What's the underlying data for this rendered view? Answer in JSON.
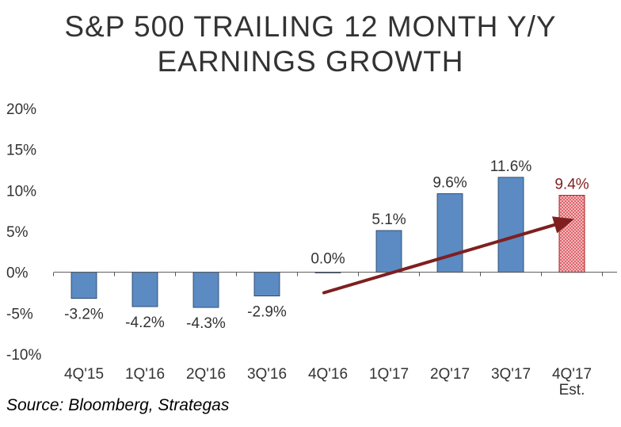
{
  "title": {
    "line1": "S&P 500 TRAILING 12 MONTH Y/Y",
    "line2": "EARNINGS GROWTH"
  },
  "source": "Source:  Bloomberg, Strategas",
  "chart_data": {
    "type": "bar",
    "title": "S&P 500 TRAILING 12 MONTH Y/Y EARNINGS GROWTH",
    "categories": [
      "4Q'15",
      "1Q'16",
      "2Q'16",
      "3Q'16",
      "4Q'16",
      "1Q'17",
      "2Q'17",
      "3Q'17",
      "4Q'17 Est."
    ],
    "category_lines": [
      [
        "4Q'15"
      ],
      [
        "1Q'16"
      ],
      [
        "2Q'16"
      ],
      [
        "3Q'16"
      ],
      [
        "4Q'16"
      ],
      [
        "1Q'17"
      ],
      [
        "2Q'17"
      ],
      [
        "3Q'17"
      ],
      [
        "4Q'17",
        "Est."
      ]
    ],
    "values": [
      -3.2,
      -4.2,
      -4.3,
      -2.9,
      0.0,
      5.1,
      9.6,
      11.6,
      9.4
    ],
    "value_labels": [
      "-3.2%",
      "-4.2%",
      "-4.3%",
      "-2.9%",
      "0.0%",
      "5.1%",
      "9.6%",
      "11.6%",
      "9.4%"
    ],
    "estimated": [
      false,
      false,
      false,
      false,
      false,
      false,
      false,
      false,
      true
    ],
    "ylim": [
      -10,
      20
    ],
    "yticks": [
      -10,
      -5,
      0,
      5,
      10,
      15,
      20
    ],
    "ytick_labels": [
      "-10%",
      "-5%",
      "0%",
      "5%",
      "10%",
      "15%",
      "20%"
    ],
    "xlabel": "",
    "ylabel": "",
    "grid": false,
    "trend_arrow": {
      "from": {
        "category_index": 4,
        "value": -2.5
      },
      "to": {
        "category_index": 8,
        "value": 6.5
      }
    },
    "colors": {
      "bar": "#5b8bc2",
      "bar_stroke": "#1f3a5f",
      "estimate": "#e89a9f",
      "estimate_stroke": "#b02020",
      "estimate_label": "#7f1f1f",
      "arrow": "#7f1f1f",
      "text": "#333333"
    }
  }
}
